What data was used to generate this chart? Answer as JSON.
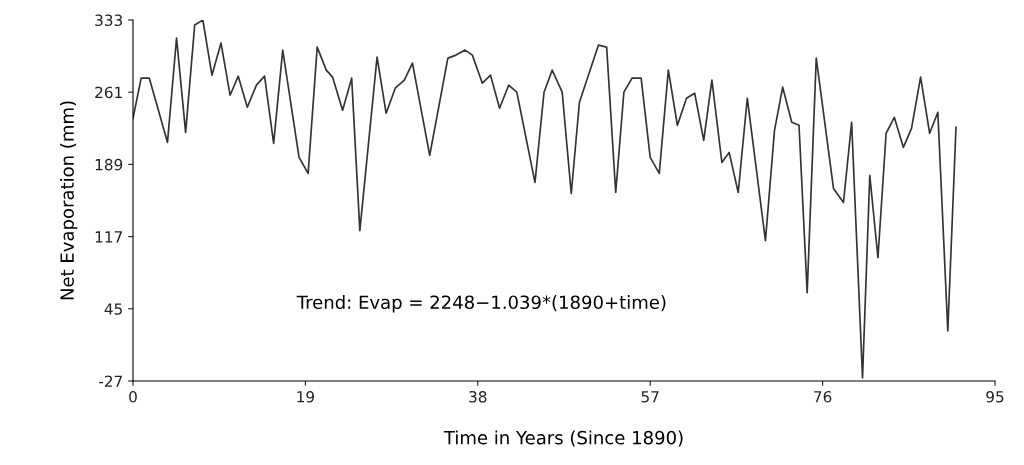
{
  "chart_data": {
    "type": "line",
    "xlabel": "Time in Years (Since 1890)",
    "ylabel": "Net Evaporation (mm)",
    "annotations": [
      "Trend: Evap = 2248−1.039*(1890+time)"
    ],
    "series": [
      {
        "color": "#333333",
        "x": [
          0,
          0.9,
          1.8,
          2.8,
          3.8,
          4.8,
          5.8,
          6.8,
          7.7,
          8.7,
          9.7,
          10.7,
          11.6,
          12.6,
          13.6,
          14.5,
          15.5,
          16.5,
          18.3,
          19.3,
          20.3,
          21.3,
          22.0,
          23.1,
          24.1,
          25.0,
          26.9,
          27.9,
          28.9,
          29.9,
          30.8,
          32.7,
          34.7,
          35.6,
          36.6,
          37.4,
          38.5,
          39.4,
          40.4,
          41.4,
          42.3,
          44.3,
          45.3,
          46.2,
          47.3,
          48.3,
          49.2,
          51.3,
          52.2,
          53.2,
          54.1,
          55.0,
          56.0,
          57.0,
          58.0,
          59.0,
          60.0,
          61.0,
          61.9,
          62.9,
          63.8,
          64.9,
          65.7,
          66.7,
          67.7,
          69.7,
          70.7,
          71.6,
          72.6,
          73.4,
          74.3,
          75.3,
          77.2,
          78.3,
          79.2,
          80.4,
          81.2,
          82.1,
          83.0,
          83.9,
          84.9,
          85.8,
          86.8,
          87.8,
          88.7,
          89.8,
          90.7
        ],
        "values": [
          235,
          275,
          275,
          243,
          211,
          315,
          221,
          328,
          333,
          278,
          310,
          258,
          277,
          246,
          268,
          277,
          210,
          303,
          196,
          180,
          306,
          283,
          276,
          243,
          275,
          123,
          296,
          240,
          265,
          273,
          290,
          198,
          295,
          298,
          303,
          298,
          270,
          278,
          245,
          268,
          261,
          171,
          261,
          283,
          261,
          160,
          251,
          308,
          306,
          161,
          261,
          275,
          275,
          196,
          180,
          283,
          228,
          255,
          260,
          213,
          273,
          191,
          201,
          161,
          255,
          113,
          223,
          266,
          231,
          228,
          61,
          295,
          165,
          151,
          231,
          -24,
          178,
          96,
          220,
          236,
          206,
          225,
          276,
          220,
          241,
          23,
          226
        ]
      }
    ],
    "xlim": [
      0,
      95
    ],
    "xticks": [
      0,
      19,
      38,
      57,
      76,
      95
    ],
    "ylim": [
      -27,
      333
    ],
    "yticks": [
      -27,
      45,
      117,
      189,
      261,
      333
    ],
    "grid": false,
    "legend": false,
    "marker": "none",
    "line_style": "solid"
  }
}
